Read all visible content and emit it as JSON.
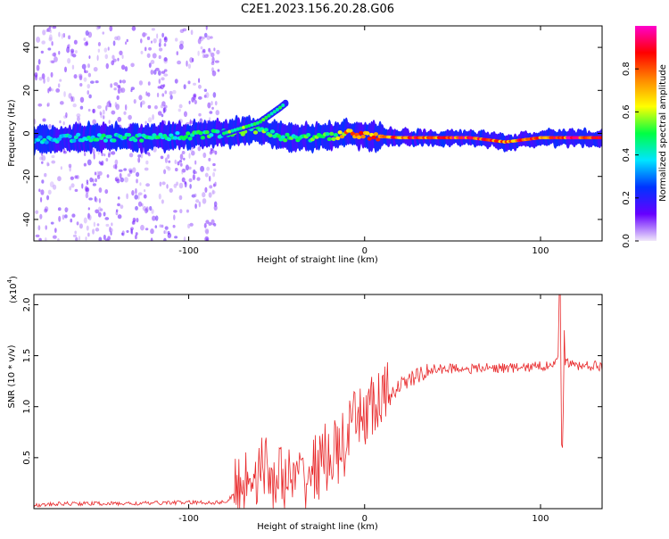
{
  "title": "C2E1.2023.156.20.28.G06",
  "chart_data": [
    {
      "type": "heatmap",
      "xlabel": "Height of straight line (km)",
      "ylabel": "Frequency (Hz)",
      "xlim": [
        -188,
        135
      ],
      "ylim": [
        -50,
        50
      ],
      "x_ticks": [
        -100,
        0,
        100
      ],
      "y_ticks": [
        -40,
        -20,
        0,
        20,
        40
      ],
      "grid": false,
      "colorbar": {
        "label": "Normalized spectral amplitude",
        "range": [
          0.0,
          1.0
        ],
        "ticks": [
          "0.0",
          "0.2",
          "0.4",
          "0.6",
          "0.8"
        ],
        "colors": [
          "#f0e8fa",
          "#6600ff",
          "#0033ff",
          "#00e5ff",
          "#00ff44",
          "#ffff00",
          "#ff8800",
          "#ff0000",
          "#ff00cc"
        ]
      },
      "ridge": [
        {
          "x": -185,
          "f": -3,
          "amp": 0.4
        },
        {
          "x": -160,
          "f": -2,
          "amp": 0.45
        },
        {
          "x": -130,
          "f": -2,
          "amp": 0.45
        },
        {
          "x": -100,
          "f": -1,
          "amp": 0.5
        },
        {
          "x": -80,
          "f": 0,
          "amp": 0.5
        },
        {
          "x": -60,
          "f": 2,
          "amp": 0.55
        },
        {
          "x": -45,
          "f": -2,
          "amp": 0.5
        },
        {
          "x": -30,
          "f": -2,
          "amp": 0.55
        },
        {
          "x": -15,
          "f": -1,
          "amp": 0.6
        },
        {
          "x": -10,
          "f": 0,
          "amp": 0.8
        },
        {
          "x": 0,
          "f": -1,
          "amp": 0.8
        },
        {
          "x": 20,
          "f": -2,
          "amp": 0.85
        },
        {
          "x": 60,
          "f": -2,
          "amp": 0.9
        },
        {
          "x": 80,
          "f": -4,
          "amp": 0.85
        },
        {
          "x": 100,
          "f": -2,
          "amp": 0.9
        },
        {
          "x": 135,
          "f": -2,
          "amp": 0.9
        }
      ],
      "branch": [
        {
          "x": -80,
          "f": 0
        },
        {
          "x": -60,
          "f": 5
        },
        {
          "x": -48,
          "f": 12
        },
        {
          "x": -45,
          "f": 14
        }
      ]
    },
    {
      "type": "line",
      "xlabel": "Height of straight line (km)",
      "ylabel": "SNR (10 * v/v)",
      "multiplier_label": "(x10",
      "multiplier_exp": "4",
      "xlim": [
        -188,
        135
      ],
      "ylim": [
        0,
        2.1
      ],
      "x_ticks": [
        -100,
        0,
        100
      ],
      "y_ticks": [
        0.5,
        1.0,
        1.5,
        2.0
      ],
      "y_tick_labels": [
        "0.5",
        "1.0",
        "1.5",
        "2.0"
      ],
      "grid": false,
      "series": [
        {
          "color": "#e8282a",
          "x": [
            -188,
            -170,
            -150,
            -130,
            -110,
            -95,
            -85,
            -78,
            -74,
            -70,
            -64,
            -58,
            -52,
            -46,
            -40,
            -34,
            -28,
            -22,
            -16,
            -12,
            -8,
            -4,
            0,
            6,
            10,
            14,
            18,
            24,
            30,
            36,
            44,
            52,
            60,
            70,
            80,
            90,
            100,
            104,
            108,
            110,
            111,
            112,
            113,
            116,
            120,
            126,
            135
          ],
          "y": [
            0.03,
            0.05,
            0.05,
            0.05,
            0.06,
            0.06,
            0.06,
            0.07,
            0.15,
            0.25,
            0.35,
            0.4,
            0.32,
            0.28,
            0.25,
            0.3,
            0.4,
            0.5,
            0.55,
            0.6,
            0.75,
            0.85,
            0.95,
            1.0,
            1.05,
            1.12,
            1.18,
            1.25,
            1.3,
            1.35,
            1.37,
            1.38,
            1.37,
            1.38,
            1.38,
            1.38,
            1.4,
            1.4,
            1.45,
            1.5,
            2.05,
            0.6,
            1.45,
            1.42,
            1.4,
            1.4,
            1.4
          ]
        }
      ]
    }
  ]
}
